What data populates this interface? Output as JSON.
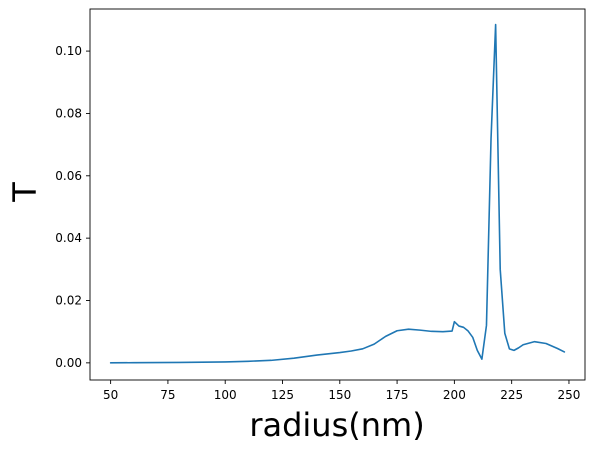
{
  "chart_data": {
    "type": "line",
    "title": "",
    "xlabel": "radius(nm)",
    "ylabel": "T",
    "xlim": [
      41,
      257
    ],
    "ylim": [
      -0.0055,
      0.1135
    ],
    "xticks": [
      50,
      75,
      100,
      125,
      150,
      175,
      200,
      225,
      250
    ],
    "xtick_labels": [
      "50",
      "75",
      "100",
      "125",
      "150",
      "175",
      "200",
      "225",
      "250"
    ],
    "yticks": [
      0.0,
      0.02,
      0.04,
      0.06,
      0.08,
      0.1
    ],
    "ytick_labels": [
      "0.00",
      "0.02",
      "0.04",
      "0.06",
      "0.08",
      "0.10"
    ],
    "grid": false,
    "legend": "none",
    "series": [
      {
        "color": "#1f77b4",
        "x": [
          50,
          60,
          70,
          80,
          90,
          100,
          110,
          120,
          130,
          140,
          150,
          155,
          160,
          165,
          170,
          175,
          180,
          185,
          190,
          195,
          199,
          200,
          202,
          204,
          206,
          208,
          210,
          212,
          214,
          216,
          218,
          220,
          222,
          224,
          226,
          228,
          230,
          235,
          240,
          245,
          248
        ],
        "y": [
          0.0,
          5e-05,
          0.0001,
          0.00015,
          0.0002,
          0.0003,
          0.0005,
          0.0008,
          0.0015,
          0.0025,
          0.0033,
          0.0038,
          0.0045,
          0.006,
          0.0085,
          0.0103,
          0.0108,
          0.0105,
          0.0101,
          0.01,
          0.0102,
          0.0132,
          0.0118,
          0.0114,
          0.0102,
          0.0082,
          0.004,
          0.0012,
          0.012,
          0.072,
          0.1085,
          0.03,
          0.0095,
          0.0045,
          0.004,
          0.0048,
          0.0058,
          0.0068,
          0.0062,
          0.0046,
          0.0035
        ]
      }
    ]
  },
  "colors": {
    "line": "#1f77b4",
    "axes": "#000000",
    "background": "#ffffff"
  }
}
